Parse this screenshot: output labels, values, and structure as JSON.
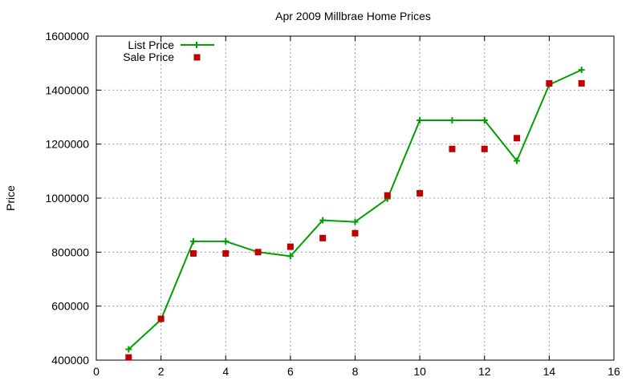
{
  "chart_data": {
    "type": "line",
    "title": "Apr 2009 Millbrae Home Prices",
    "xlabel": "",
    "ylabel": "Price",
    "xlim": [
      0,
      16
    ],
    "ylim": [
      400000,
      1600000
    ],
    "xticks": [
      0,
      2,
      4,
      6,
      8,
      10,
      12,
      14,
      16
    ],
    "yticks": [
      400000,
      600000,
      800000,
      1000000,
      1200000,
      1400000,
      1600000
    ],
    "grid": true,
    "legend_position": "top-left",
    "series": [
      {
        "name": "List Price",
        "style": "line-with-plus",
        "color": "#00a000",
        "x": [
          1,
          2,
          3,
          4,
          5,
          6,
          7,
          8,
          9,
          10,
          11,
          12,
          13,
          14,
          15
        ],
        "y": [
          440000,
          550000,
          840000,
          840000,
          800000,
          785000,
          918000,
          912000,
          998000,
          1288000,
          1288000,
          1288000,
          1138000,
          1420000,
          1475000
        ]
      },
      {
        "name": "Sale Price",
        "style": "square-markers",
        "color": "#c00000",
        "x": [
          1,
          2,
          3,
          4,
          5,
          6,
          7,
          8,
          9,
          10,
          11,
          12,
          13,
          14,
          15
        ],
        "y": [
          410000,
          553000,
          795000,
          795000,
          800000,
          820000,
          852000,
          870000,
          1010000,
          1018000,
          1182000,
          1182000,
          1222000,
          1425000,
          1425000
        ]
      }
    ]
  }
}
